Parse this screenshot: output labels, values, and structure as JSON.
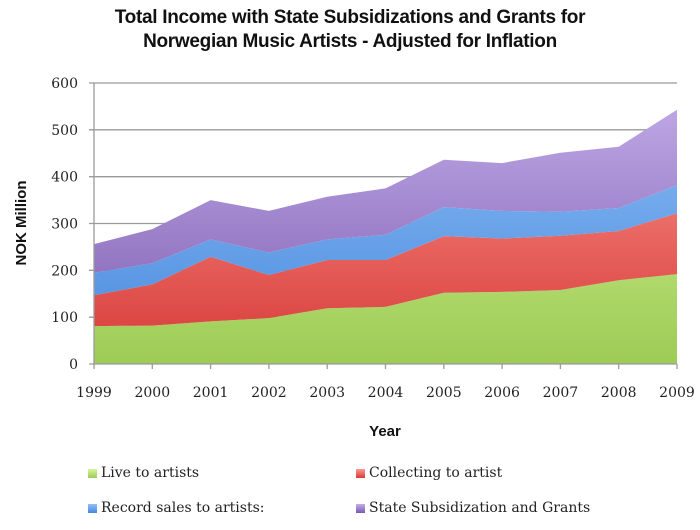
{
  "chart_data": {
    "type": "area",
    "stacked": true,
    "title": "Total Income with State Subsidizations and Grants for Norwegian Music Artists - Adjusted for Inflation",
    "title_lines": [
      "Total Income with State Subsidizations and Grants for",
      "Norwegian Music Artists - Adjusted for Inflation"
    ],
    "xlabel": "Year",
    "ylabel": "NOK Million",
    "ylim": [
      0,
      600
    ],
    "yticks": [
      0,
      100,
      200,
      300,
      400,
      500,
      600
    ],
    "grid": true,
    "legend_position": "bottom",
    "categories": [
      "1999",
      "2000",
      "2001",
      "2002",
      "2003",
      "2004",
      "2005",
      "2006",
      "2007",
      "2008",
      "2009"
    ],
    "series": [
      {
        "name": "Live to artists",
        "color": "#9dcc55",
        "color_light": "#d8f59e",
        "values": [
          81,
          82,
          91,
          98,
          119,
          122,
          152,
          154,
          158,
          179,
          192
        ]
      },
      {
        "name": "Collecting to artist",
        "color": "#d63a36",
        "color_light": "#ff9a95",
        "values": [
          66,
          88,
          138,
          92,
          103,
          100,
          121,
          114,
          116,
          105,
          130
        ]
      },
      {
        "name": "Record sales to artists:",
        "color": "#4688dc",
        "color_light": "#92c0f7",
        "values": [
          48,
          45,
          37,
          48,
          44,
          54,
          62,
          59,
          51,
          49,
          60
        ]
      },
      {
        "name": "State Subsidization and Grants",
        "color": "#7a5aae",
        "color_light": "#c4aeea",
        "values": [
          61,
          73,
          84,
          89,
          91,
          99,
          101,
          102,
          126,
          131,
          161
        ]
      }
    ]
  }
}
